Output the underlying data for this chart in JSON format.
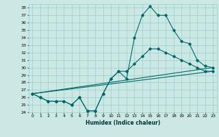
{
  "xlabel": "Humidex (Indice chaleur)",
  "bg_color": "#cce8e4",
  "grid_color": "#99cccc",
  "line_color": "#006666",
  "xlim": [
    -0.5,
    23.5
  ],
  "ylim": [
    24,
    38.5
  ],
  "xticks": [
    0,
    1,
    2,
    3,
    4,
    5,
    6,
    7,
    8,
    9,
    10,
    11,
    12,
    13,
    14,
    15,
    16,
    17,
    18,
    19,
    20,
    21,
    22,
    23
  ],
  "yticks": [
    24,
    25,
    26,
    27,
    28,
    29,
    30,
    31,
    32,
    33,
    34,
    35,
    36,
    37,
    38
  ],
  "line1_x": [
    0,
    1,
    2,
    3,
    4,
    5,
    6,
    7,
    8,
    9,
    10,
    11,
    12,
    13,
    14,
    15,
    16,
    17,
    18,
    19,
    20,
    21,
    22,
    23
  ],
  "line1_y": [
    26.5,
    26.0,
    25.5,
    25.5,
    25.5,
    25.0,
    26.0,
    24.2,
    24.2,
    26.5,
    28.5,
    29.5,
    28.5,
    34.0,
    37.0,
    38.2,
    37.0,
    37.0,
    35.0,
    33.5,
    33.2,
    31.0,
    30.2,
    30.0
  ],
  "line2_x": [
    0,
    1,
    2,
    3,
    4,
    5,
    6,
    7,
    8,
    9,
    10,
    11,
    12,
    13,
    14,
    15,
    16,
    17,
    18,
    19,
    20,
    21,
    22,
    23
  ],
  "line2_y": [
    26.5,
    26.0,
    25.5,
    25.5,
    25.5,
    25.0,
    26.0,
    24.2,
    24.2,
    26.5,
    28.5,
    29.5,
    29.5,
    30.5,
    31.5,
    32.5,
    32.5,
    32.0,
    31.5,
    31.0,
    30.5,
    30.0,
    29.5,
    29.5
  ],
  "line3_x": [
    0,
    23
  ],
  "line3_y": [
    26.5,
    30.0
  ],
  "line4_x": [
    0,
    23
  ],
  "line4_y": [
    26.5,
    29.5
  ]
}
